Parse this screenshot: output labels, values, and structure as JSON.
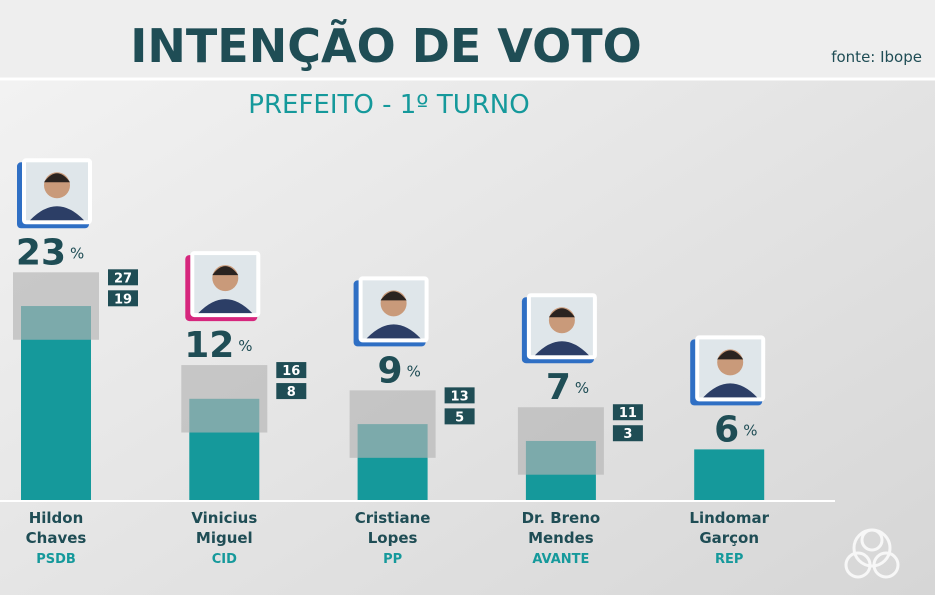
{
  "chart_data": {
    "type": "bar",
    "title": "INTENÇÃO DE VOTO",
    "subtitle": "PREFEITO - 1º TURNO",
    "source": "fonte: Ibope",
    "unit_label": "%",
    "names": [
      [
        "Hildon",
        "Chaves"
      ],
      [
        "Vinicius",
        "Miguel"
      ],
      [
        "Cristiane",
        "Lopes"
      ],
      [
        "Dr. Breno",
        "Mendes"
      ],
      [
        "Lindomar",
        "Garçon"
      ]
    ],
    "parties": [
      "PSDB",
      "CID",
      "PP",
      "AVANTE",
      "REP"
    ],
    "values": [
      23,
      12,
      9,
      7,
      6
    ],
    "low": [
      19,
      8,
      5,
      3,
      null
    ],
    "high": [
      27,
      16,
      13,
      11,
      null
    ],
    "color": "#15999b",
    "range_color": "#b4b4b4",
    "photo_colors": [
      "#2f6fc4",
      "#d6267d",
      "#2f6fc4",
      "#2f6fc4",
      "#2f6fc4"
    ],
    "ylim": [
      0,
      30
    ]
  }
}
